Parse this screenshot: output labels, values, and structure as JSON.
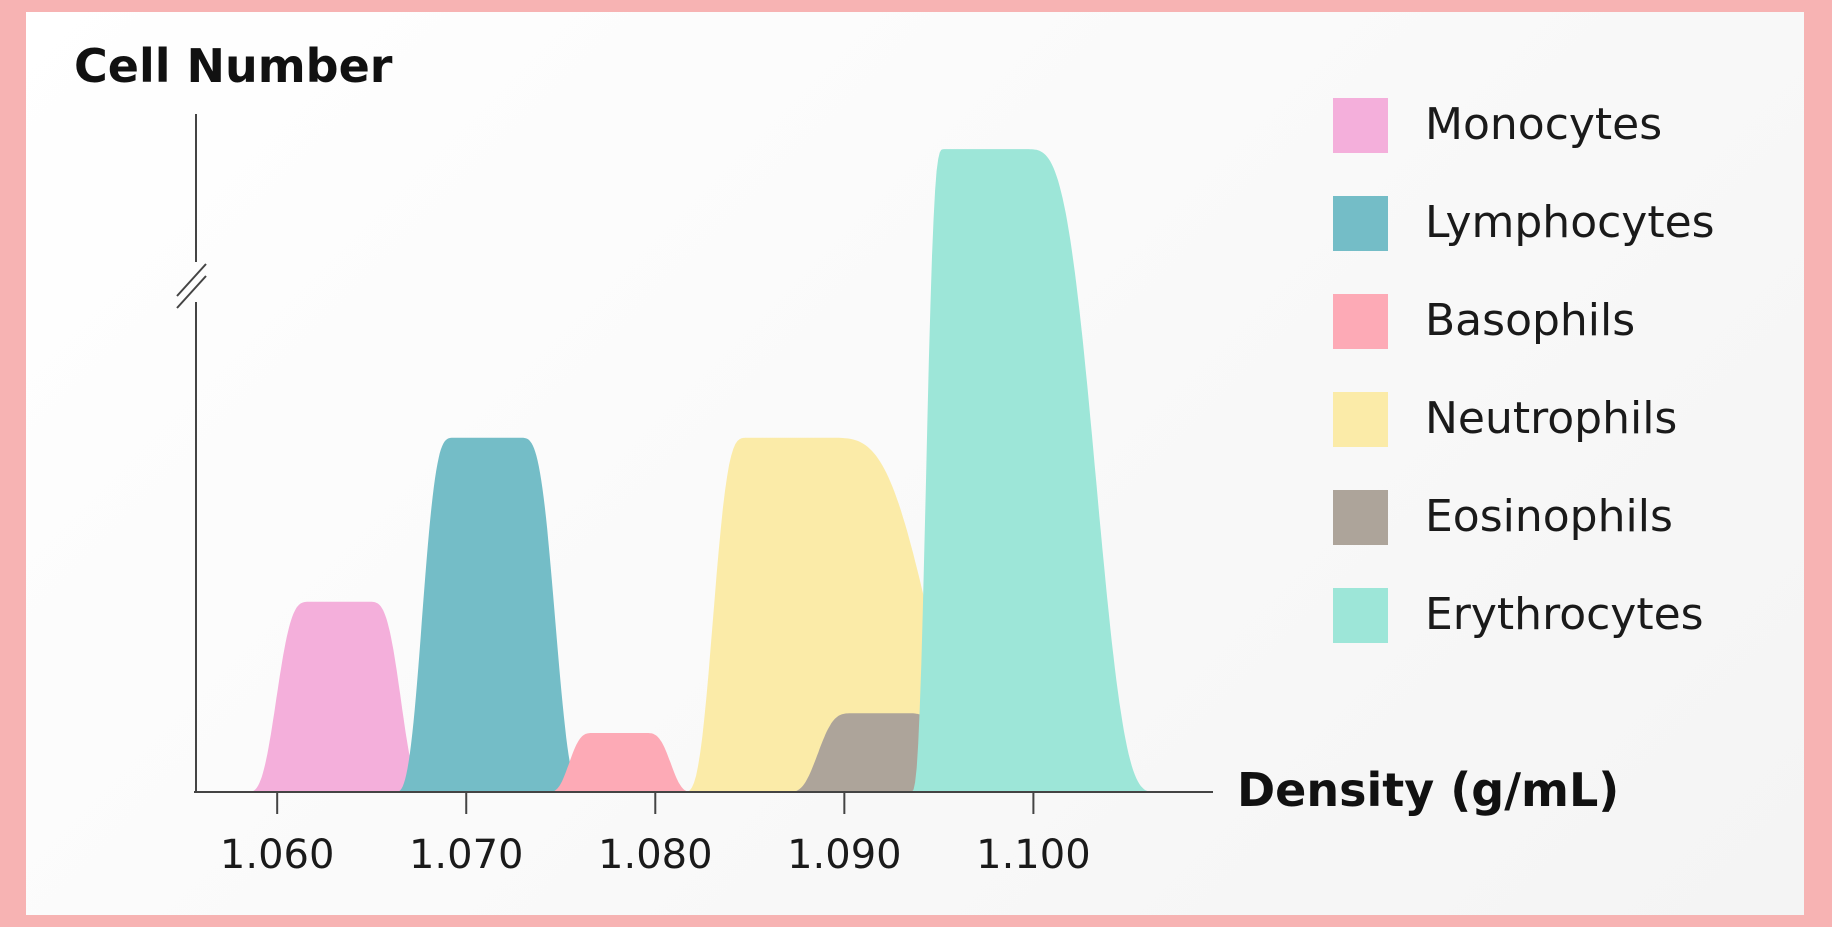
{
  "chart_data": {
    "type": "area",
    "title": "",
    "ylabel": "Cell Number",
    "xlabel": "Density (g/mL)",
    "xlim": [
      1.0556,
      1.1095
    ],
    "ylim": [
      0,
      1
    ],
    "y_axis_break": true,
    "legend_position": "top-right",
    "x_ticks": [
      "1.060",
      "1.070",
      "1.080",
      "1.090",
      "1.100"
    ],
    "x_tick_values": [
      1.06,
      1.07,
      1.08,
      1.09,
      1.1
    ],
    "series": [
      {
        "name": "Monocytes",
        "color": "#f4afdb",
        "start": 1.0584,
        "end": 1.068,
        "peak_x": 1.0633,
        "peak_y": 0.29,
        "plateau": 0.003
      },
      {
        "name": "Lymphocytes",
        "color": "#74bdc7",
        "start": 1.0662,
        "end": 1.0763,
        "peak_x": 1.0711,
        "peak_y": 0.54,
        "plateau": 0.0034
      },
      {
        "name": "Basophils",
        "color": "#fdaab6",
        "start": 1.0743,
        "end": 1.082,
        "peak_x": 1.0781,
        "peak_y": 0.09,
        "plateau": 0.0026
      },
      {
        "name": "Neutrophils",
        "color": "#fbeba8",
        "start": 1.0815,
        "end": 1.099,
        "peak_x": 1.087,
        "peak_y": 0.54,
        "plateau": 0.0042
      },
      {
        "name": "Eosinophils",
        "color": "#ada49a",
        "start": 1.087,
        "end": 1.097,
        "peak_x": 1.0919,
        "peak_y": 0.12,
        "plateau": 0.0028
      },
      {
        "name": "Erythrocytes",
        "color": "#9de6d8",
        "start": 1.0935,
        "end": 1.1065,
        "peak_x": 1.0974,
        "peak_y": 0.98,
        "plateau": 0.0042
      }
    ]
  }
}
